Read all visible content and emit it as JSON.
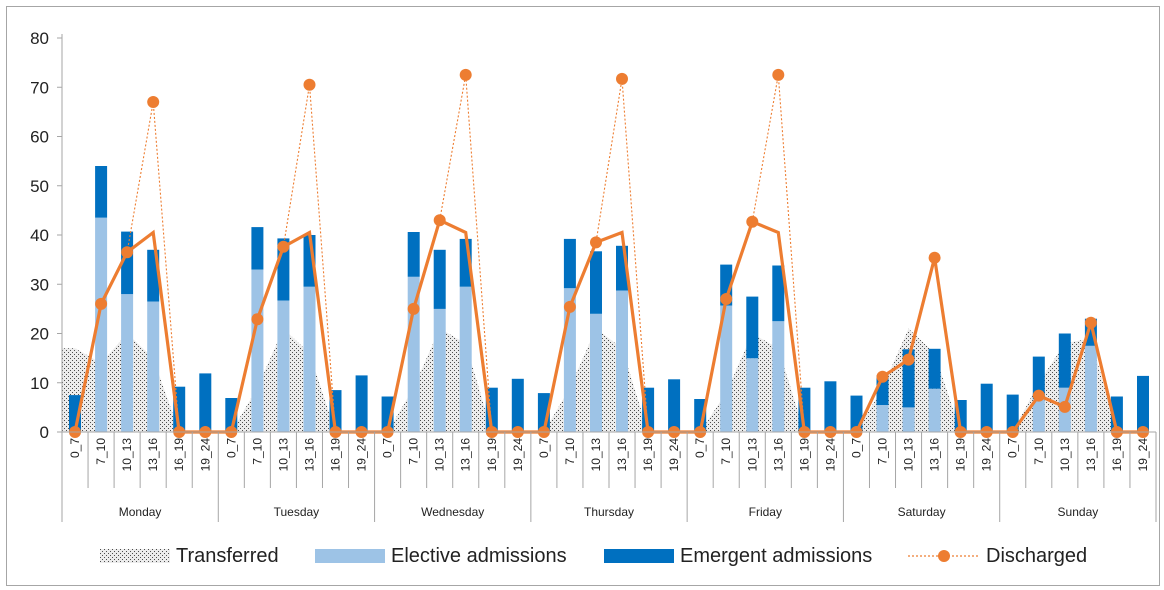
{
  "chart_data": {
    "type": "bar",
    "title": "",
    "xlabel": "",
    "ylabel": "",
    "ylim": [
      0,
      80
    ],
    "yticks": [
      0,
      10,
      20,
      30,
      40,
      50,
      60,
      70,
      80
    ],
    "grid": false,
    "legend_position": "bottom",
    "days": [
      "Monday",
      "Tuesday",
      "Wednesday",
      "Thursday",
      "Friday",
      "Saturday",
      "Sunday"
    ],
    "time_slots": [
      "0_7",
      "7_10",
      "10_13",
      "13_16",
      "16_19",
      "19_24"
    ],
    "stacking": "Elective admissions and Emergent admissions are stacked bars; Transferred is a hatched area; Discharged and the thick orange line are lines",
    "series": [
      {
        "name": "Transferred",
        "kind": "area",
        "color": "#a6a6a6",
        "values": [
          [
            17,
            14,
            20,
            15,
            0,
            0
          ],
          [
            0,
            9,
            21,
            16,
            0,
            0
          ],
          [
            0,
            9,
            21,
            18,
            0,
            0
          ],
          [
            0,
            9,
            21,
            17,
            0,
            0
          ],
          [
            0,
            8,
            20,
            17,
            0,
            0
          ],
          [
            0,
            9,
            21,
            16,
            0,
            0
          ],
          [
            0,
            10,
            18,
            19,
            0,
            0
          ]
        ]
      },
      {
        "name": "Elective admissions",
        "kind": "bar",
        "color": "#9dc3e6",
        "values": [
          [
            0,
            43.5,
            28,
            26.5,
            0,
            0
          ],
          [
            0,
            33,
            26.7,
            29.5,
            0,
            0
          ],
          [
            0,
            31.5,
            25,
            29.5,
            0,
            0
          ],
          [
            0,
            29.2,
            24,
            28.7,
            0,
            0
          ],
          [
            0,
            25.7,
            15,
            22.5,
            0,
            0
          ],
          [
            0,
            5.5,
            5,
            8.8,
            0,
            0
          ],
          [
            0,
            6.7,
            9,
            17.5,
            0,
            0
          ]
        ]
      },
      {
        "name": "Emergent admissions",
        "kind": "bar",
        "color": "#0070c0",
        "values": [
          [
            7.5,
            10.5,
            12.7,
            10.5,
            9.2,
            11.9
          ],
          [
            6.9,
            8.6,
            12.6,
            10.5,
            8.5,
            11.5
          ],
          [
            7.2,
            9.1,
            12,
            9.7,
            9,
            10.8
          ],
          [
            7.9,
            10,
            12.7,
            9.1,
            9,
            10.7
          ],
          [
            6.7,
            8.3,
            12.5,
            11.3,
            9,
            10.3
          ],
          [
            7.4,
            6,
            11.8,
            8.1,
            6.5,
            9.8
          ],
          [
            7.6,
            8.6,
            11,
            5.5,
            7.2,
            11.4
          ]
        ]
      },
      {
        "name": "Discharged",
        "kind": "line",
        "color": "#ed7d31",
        "values": [
          [
            0,
            26,
            36.5,
            67,
            0,
            0
          ],
          [
            0,
            22.9,
            37.6,
            70.5,
            0,
            0
          ],
          [
            0,
            25,
            43,
            72.5,
            0,
            0
          ],
          [
            0,
            25.4,
            38.5,
            71.7,
            0,
            0
          ],
          [
            0,
            27,
            42.7,
            72.5,
            0,
            0
          ],
          [
            0,
            11.2,
            14.7,
            35.4,
            0,
            0
          ],
          [
            0,
            7.4,
            5.1,
            22.2,
            0,
            0
          ]
        ]
      },
      {
        "kind": "line",
        "color": "#ed7d31",
        "values": [
          [
            0,
            26,
            36.5,
            40.5,
            0,
            0
          ],
          [
            0,
            22.9,
            37.6,
            40.5,
            0,
            0
          ],
          [
            0,
            25,
            43,
            40.5,
            0,
            0
          ],
          [
            0,
            25.4,
            38.5,
            40.5,
            0,
            0
          ],
          [
            0,
            27,
            42.7,
            40.5,
            0,
            0
          ],
          [
            0,
            11.2,
            14.7,
            35.4,
            0,
            0
          ],
          [
            0,
            7.4,
            5.1,
            22.2,
            0,
            0
          ]
        ]
      }
    ],
    "legend": [
      {
        "name": "Transferred",
        "symbol": "hatched-area",
        "color": "#a6a6a6"
      },
      {
        "name": "Elective admissions",
        "symbol": "bar",
        "color": "#9dc3e6"
      },
      {
        "name": "Emergent admissions",
        "symbol": "bar",
        "color": "#0070c0"
      },
      {
        "name": "Discharged",
        "symbol": "dotted-line-marker",
        "color": "#ed7d31"
      }
    ]
  }
}
